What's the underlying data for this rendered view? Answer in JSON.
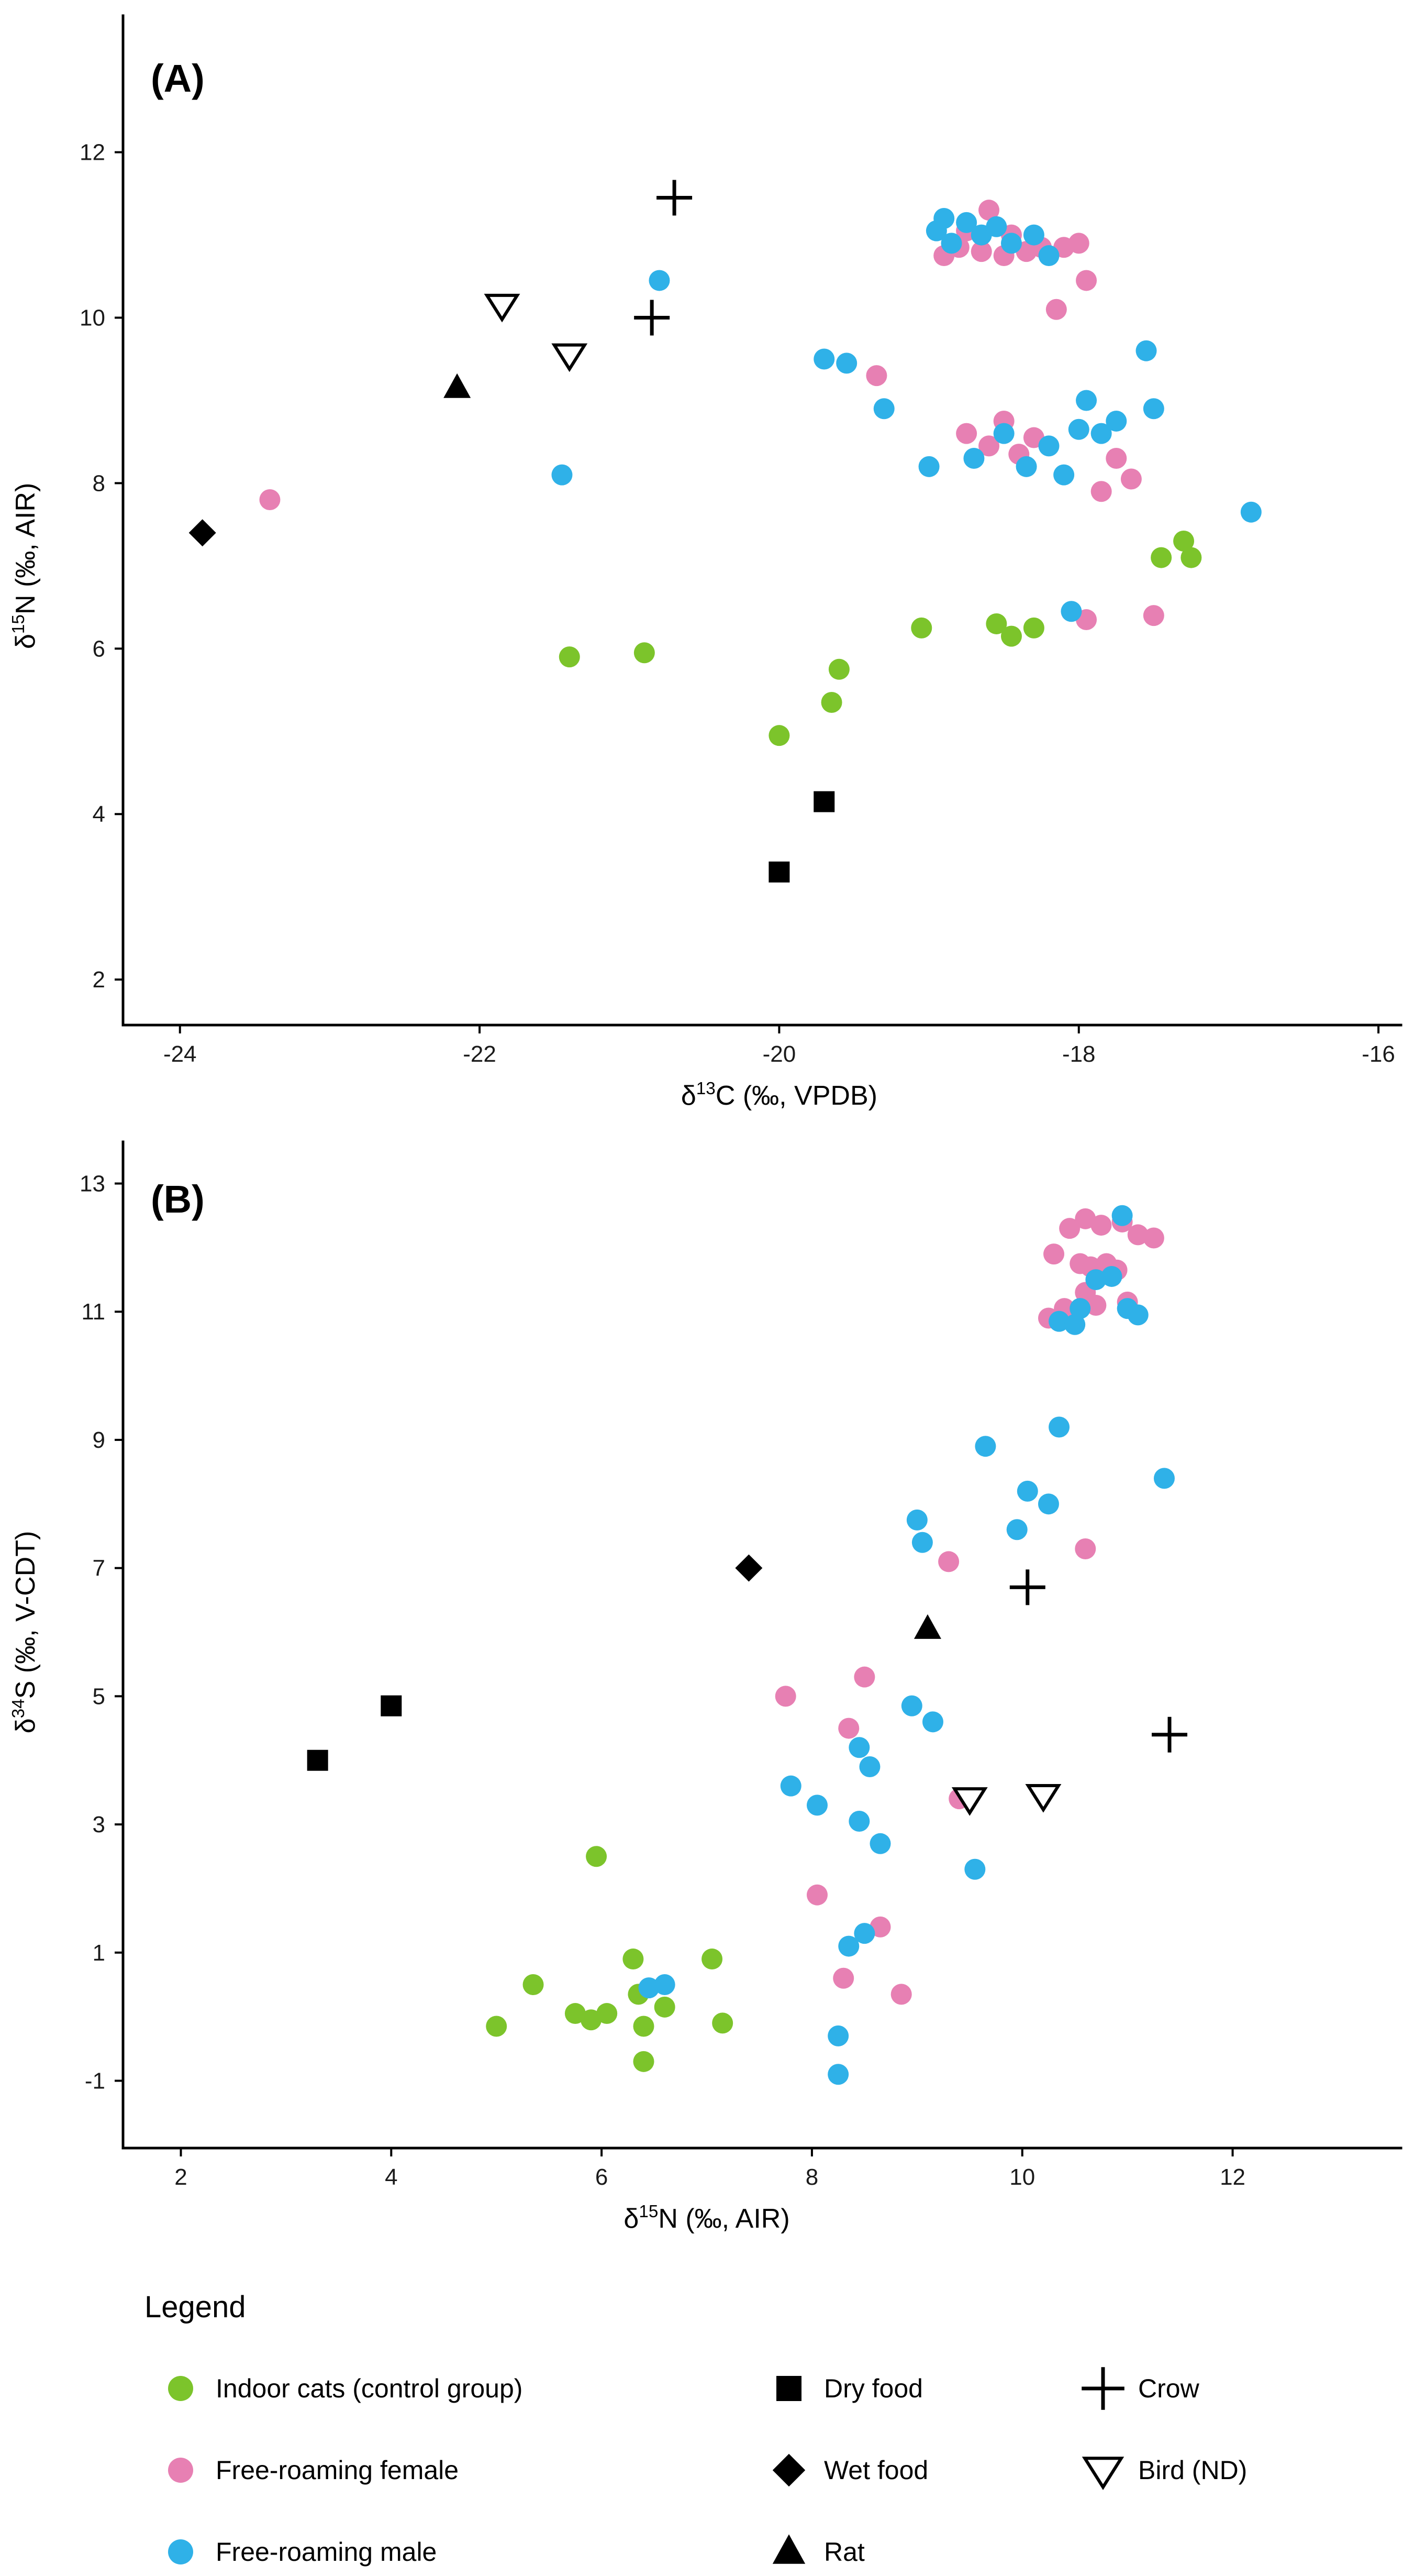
{
  "figure": {
    "background": "#ffffff",
    "text_color": "#1a1a1a",
    "axis_color": "#000000"
  },
  "colors": {
    "indoor_cats": "#7CC42B",
    "free_roaming_female": "#E780B3",
    "free_roaming_male": "#2FB1E8",
    "reference_black": "#000000"
  },
  "legend": {
    "title": "Legend",
    "columns": [
      {
        "items": [
          {
            "label": "Indoor cats (control group)",
            "marker": "circle",
            "color": "#7CC42B"
          },
          {
            "label": "Free-roaming female",
            "marker": "circle",
            "color": "#E780B3"
          },
          {
            "label": "Free-roaming male",
            "marker": "circle",
            "color": "#2FB1E8"
          }
        ]
      },
      {
        "items": [
          {
            "label": "Dry food",
            "marker": "square",
            "color": "#000000"
          },
          {
            "label": "Wet food",
            "marker": "diamond",
            "color": "#000000"
          },
          {
            "label": "Rat",
            "marker": "triangle-up",
            "color": "#000000"
          }
        ]
      },
      {
        "items": [
          {
            "label": "Crow",
            "marker": "plus",
            "color": "#000000"
          },
          {
            "label": "Bird (ND)",
            "marker": "triangle-down-open",
            "color": "#000000"
          }
        ]
      }
    ]
  },
  "chart_data": [
    {
      "type": "scatter",
      "panel_label": "(A)",
      "xlabel": "δ^{13}C (‰, VPDB)",
      "ylabel": "δ^{15}N (‰, AIR)",
      "xlim": [
        -24.38,
        -15.85
      ],
      "ylim": [
        1.45,
        13.65
      ],
      "xticks": [
        -24,
        -22,
        -20,
        -18,
        -16
      ],
      "yticks": [
        2,
        4,
        6,
        8,
        10,
        12
      ],
      "grid": false,
      "series": [
        {
          "name": "Indoor cats (control group)",
          "marker": "circle",
          "color": "#7CC42B",
          "points": [
            [
              -21.4,
              5.9
            ],
            [
              -20.9,
              5.95
            ],
            [
              -20.0,
              4.95
            ],
            [
              -19.65,
              5.35
            ],
            [
              -19.6,
              5.75
            ],
            [
              -19.05,
              6.25
            ],
            [
              -18.55,
              6.3
            ],
            [
              -18.45,
              6.15
            ],
            [
              -18.3,
              6.25
            ],
            [
              -17.45,
              7.1
            ],
            [
              -17.3,
              7.3
            ],
            [
              -17.25,
              7.1
            ]
          ]
        },
        {
          "name": "Free-roaming female",
          "marker": "circle",
          "color": "#E780B3",
          "points": [
            [
              -23.4,
              7.8
            ],
            [
              -19.35,
              9.3
            ],
            [
              -18.9,
              10.75
            ],
            [
              -18.8,
              10.85
            ],
            [
              -18.75,
              11.05
            ],
            [
              -18.65,
              10.8
            ],
            [
              -18.6,
              11.3
            ],
            [
              -18.5,
              10.75
            ],
            [
              -18.45,
              11.0
            ],
            [
              -18.35,
              10.8
            ],
            [
              -18.25,
              10.85
            ],
            [
              -18.1,
              10.85
            ],
            [
              -18.0,
              10.9
            ],
            [
              -17.95,
              10.45
            ],
            [
              -18.15,
              10.1
            ],
            [
              -18.75,
              8.6
            ],
            [
              -18.6,
              8.45
            ],
            [
              -18.5,
              8.75
            ],
            [
              -18.4,
              8.35
            ],
            [
              -18.3,
              8.55
            ],
            [
              -17.85,
              7.9
            ],
            [
              -17.75,
              8.3
            ],
            [
              -17.65,
              8.05
            ],
            [
              -17.95,
              6.35
            ],
            [
              -17.5,
              6.4
            ]
          ]
        },
        {
          "name": "Free-roaming male",
          "marker": "circle",
          "color": "#2FB1E8",
          "points": [
            [
              -21.45,
              8.1
            ],
            [
              -20.8,
              10.45
            ],
            [
              -19.7,
              9.5
            ],
            [
              -19.55,
              9.45
            ],
            [
              -19.3,
              8.9
            ],
            [
              -18.95,
              11.05
            ],
            [
              -18.9,
              11.2
            ],
            [
              -18.85,
              10.9
            ],
            [
              -18.75,
              11.15
            ],
            [
              -18.65,
              11.0
            ],
            [
              -18.55,
              11.1
            ],
            [
              -18.45,
              10.9
            ],
            [
              -18.3,
              11.0
            ],
            [
              -18.2,
              10.75
            ],
            [
              -19.0,
              8.2
            ],
            [
              -18.7,
              8.3
            ],
            [
              -18.5,
              8.6
            ],
            [
              -18.35,
              8.2
            ],
            [
              -18.2,
              8.45
            ],
            [
              -18.1,
              8.1
            ],
            [
              -18.0,
              8.65
            ],
            [
              -17.95,
              9.0
            ],
            [
              -17.85,
              8.6
            ],
            [
              -17.75,
              8.75
            ],
            [
              -17.55,
              9.6
            ],
            [
              -17.5,
              8.9
            ],
            [
              -16.85,
              7.65
            ],
            [
              -18.05,
              6.45
            ]
          ]
        },
        {
          "name": "Dry food",
          "marker": "square",
          "color": "#000000",
          "points": [
            [
              -19.7,
              4.15
            ],
            [
              -20.0,
              3.3
            ]
          ]
        },
        {
          "name": "Wet food",
          "marker": "diamond",
          "color": "#000000",
          "points": [
            [
              -23.85,
              7.4
            ]
          ]
        },
        {
          "name": "Rat",
          "marker": "triangle-up",
          "color": "#000000",
          "points": [
            [
              -22.15,
              9.15
            ]
          ]
        },
        {
          "name": "Crow",
          "marker": "plus",
          "color": "#000000",
          "points": [
            [
              -20.7,
              11.45
            ],
            [
              -20.85,
              10.0
            ]
          ]
        },
        {
          "name": "Bird (ND)",
          "marker": "triangle-down-open",
          "color": "#000000",
          "points": [
            [
              -21.85,
              10.15
            ],
            [
              -21.4,
              9.55
            ]
          ]
        }
      ]
    },
    {
      "type": "scatter",
      "panel_label": "(B)",
      "xlabel": "δ^{15}N (‰, AIR)",
      "ylabel": "δ^{34}S (‰, V-CDT)",
      "xlim": [
        1.45,
        13.6
      ],
      "ylim": [
        -2.05,
        13.65
      ],
      "xticks": [
        2,
        4,
        6,
        8,
        10,
        12
      ],
      "yticks": [
        -1,
        1,
        3,
        5,
        7,
        9,
        11,
        13
      ],
      "grid": false,
      "series": [
        {
          "name": "Indoor cats (control group)",
          "marker": "circle",
          "color": "#7CC42B",
          "points": [
            [
              5.0,
              -0.15
            ],
            [
              5.35,
              0.5
            ],
            [
              5.75,
              0.05
            ],
            [
              5.9,
              -0.05
            ],
            [
              6.05,
              0.05
            ],
            [
              5.95,
              2.5
            ],
            [
              6.3,
              0.9
            ],
            [
              6.35,
              0.35
            ],
            [
              6.4,
              -0.15
            ],
            [
              6.4,
              -0.7
            ],
            [
              6.6,
              0.15
            ],
            [
              7.05,
              0.9
            ],
            [
              7.15,
              -0.1
            ]
          ]
        },
        {
          "name": "Free-roaming female",
          "marker": "circle",
          "color": "#E780B3",
          "points": [
            [
              10.45,
              12.3
            ],
            [
              10.6,
              12.45
            ],
            [
              10.75,
              12.35
            ],
            [
              10.95,
              12.4
            ],
            [
              11.1,
              12.2
            ],
            [
              11.25,
              12.15
            ],
            [
              10.3,
              11.9
            ],
            [
              10.55,
              11.75
            ],
            [
              10.65,
              11.7
            ],
            [
              10.8,
              11.75
            ],
            [
              10.9,
              11.65
            ],
            [
              10.4,
              11.05
            ],
            [
              10.6,
              11.3
            ],
            [
              10.7,
              11.1
            ],
            [
              11.0,
              11.15
            ],
            [
              10.25,
              10.9
            ],
            [
              10.6,
              7.3
            ],
            [
              9.3,
              7.1
            ],
            [
              8.5,
              5.3
            ],
            [
              7.75,
              5.0
            ],
            [
              8.35,
              4.5
            ],
            [
              9.4,
              3.4
            ],
            [
              8.05,
              1.9
            ],
            [
              8.65,
              1.4
            ],
            [
              8.3,
              0.6
            ],
            [
              8.85,
              0.35
            ]
          ]
        },
        {
          "name": "Free-roaming male",
          "marker": "circle",
          "color": "#2FB1E8",
          "points": [
            [
              10.95,
              12.5
            ],
            [
              10.7,
              11.5
            ],
            [
              10.85,
              11.55
            ],
            [
              10.35,
              10.85
            ],
            [
              10.5,
              10.8
            ],
            [
              10.55,
              11.05
            ],
            [
              11.0,
              11.05
            ],
            [
              11.1,
              10.95
            ],
            [
              10.35,
              9.2
            ],
            [
              9.65,
              8.9
            ],
            [
              11.35,
              8.4
            ],
            [
              10.05,
              8.2
            ],
            [
              10.25,
              8.0
            ],
            [
              9.95,
              7.6
            ],
            [
              9.0,
              7.75
            ],
            [
              9.05,
              7.4
            ],
            [
              8.95,
              4.85
            ],
            [
              9.15,
              4.6
            ],
            [
              8.45,
              4.2
            ],
            [
              8.55,
              3.9
            ],
            [
              7.8,
              3.6
            ],
            [
              8.05,
              3.3
            ],
            [
              8.45,
              3.05
            ],
            [
              8.65,
              2.7
            ],
            [
              9.55,
              2.3
            ],
            [
              8.35,
              1.1
            ],
            [
              8.5,
              1.3
            ],
            [
              8.25,
              -0.3
            ],
            [
              8.25,
              -0.9
            ],
            [
              6.45,
              0.45
            ],
            [
              6.6,
              0.5
            ]
          ]
        },
        {
          "name": "Dry food",
          "marker": "square",
          "color": "#000000",
          "points": [
            [
              3.3,
              4.0
            ],
            [
              4.0,
              4.85
            ]
          ]
        },
        {
          "name": "Wet food",
          "marker": "diamond",
          "color": "#000000",
          "points": [
            [
              7.4,
              7.0
            ]
          ]
        },
        {
          "name": "Rat",
          "marker": "triangle-up",
          "color": "#000000",
          "points": [
            [
              9.1,
              6.05
            ]
          ]
        },
        {
          "name": "Crow",
          "marker": "plus",
          "color": "#000000",
          "points": [
            [
              10.05,
              6.7
            ],
            [
              11.4,
              4.4
            ]
          ]
        },
        {
          "name": "Bird (ND)",
          "marker": "triangle-down-open",
          "color": "#000000",
          "points": [
            [
              9.5,
              3.4
            ],
            [
              10.2,
              3.45
            ]
          ]
        }
      ]
    }
  ]
}
